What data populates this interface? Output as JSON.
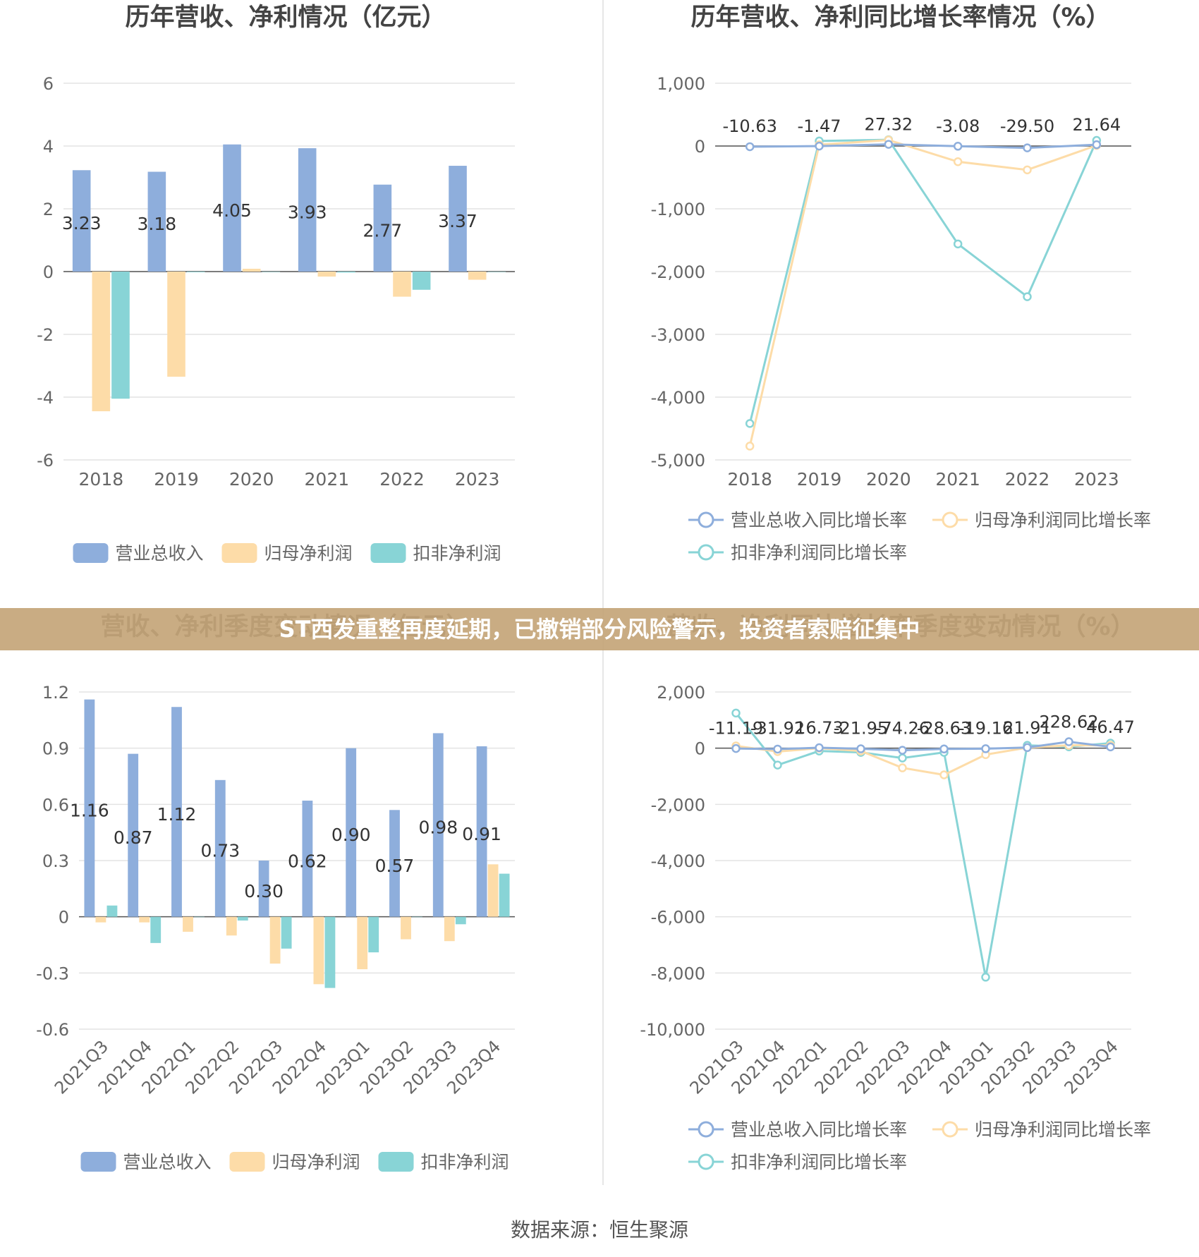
{
  "banner": "ST西发重整再度延期，已撤销部分风险警示，投资者索赔征集中",
  "source": "数据来源：恒生聚源",
  "colors": {
    "revenue": "#8eaedc",
    "net_profit": "#fddca8",
    "deducted": "#88d4d6",
    "divider": "#e6e6e6"
  },
  "chart_data": [
    {
      "id": "annual-bars",
      "type": "bar",
      "title": "历年营收、净利情况（亿元）",
      "categories": [
        "2018",
        "2019",
        "2020",
        "2021",
        "2022",
        "2023"
      ],
      "ylim": [
        -6,
        6
      ],
      "yticks": [
        6,
        4,
        2,
        0,
        -2,
        -4,
        -6
      ],
      "ytick_labels": [
        "6",
        "4",
        "2",
        "0",
        "-2",
        "-4",
        "-6"
      ],
      "series": [
        {
          "name": "营业总收入",
          "color": "#8eaedc",
          "values": [
            3.23,
            3.18,
            4.05,
            3.93,
            2.77,
            3.37
          ],
          "labels": [
            "3.23",
            "3.18",
            "4.05",
            "3.93",
            "2.77",
            "3.37"
          ]
        },
        {
          "name": "归母净利润",
          "color": "#fddca8",
          "values": [
            -4.45,
            -3.35,
            0.09,
            -0.16,
            -0.8,
            -0.26
          ]
        },
        {
          "name": "扣非净利润",
          "color": "#88d4d6",
          "values": [
            -4.05,
            -0.02,
            0.0,
            -0.03,
            -0.58,
            0.0
          ]
        }
      ],
      "grid": true,
      "legend": "bottom"
    },
    {
      "id": "annual-growth",
      "type": "line",
      "title": "历年营收、净利同比增长率情况（%）",
      "categories": [
        "2018",
        "2019",
        "2020",
        "2021",
        "2022",
        "2023"
      ],
      "ylim": [
        -5000,
        1000
      ],
      "yticks": [
        1000,
        0,
        -1000,
        -2000,
        -3000,
        -4000,
        -5000
      ],
      "ytick_labels": [
        "1,000",
        "0",
        "-1,000",
        "-2,000",
        "-3,000",
        "-4,000",
        "-5,000"
      ],
      "series": [
        {
          "name": "营业总收入同比增长率",
          "color": "#8eaedc",
          "values": [
            -10.63,
            -1.47,
            27.32,
            -3.08,
            -29.5,
            21.64
          ],
          "labels": [
            "-10.63",
            "-1.47",
            "27.32",
            "-3.08",
            "-29.50",
            "21.64"
          ]
        },
        {
          "name": "归母净利润同比增长率",
          "color": "#fddca8",
          "values": [
            -4780,
            20,
            95,
            -250,
            -380,
            10
          ]
        },
        {
          "name": "扣非净利润同比增长率",
          "color": "#88d4d6",
          "values": [
            -4420,
            80,
            100,
            -1560,
            -2400,
            90
          ]
        }
      ],
      "grid": true,
      "legend": "bottom"
    },
    {
      "id": "quarterly-bars",
      "type": "bar",
      "title": "营收、净利季度变动情况（亿元）",
      "categories": [
        "2021Q3",
        "2021Q4",
        "2022Q1",
        "2022Q2",
        "2022Q3",
        "2022Q4",
        "2023Q1",
        "2023Q2",
        "2023Q3",
        "2023Q4"
      ],
      "ylim": [
        -0.6,
        1.2
      ],
      "yticks": [
        1.2,
        0.9,
        0.6,
        0.3,
        0,
        -0.3,
        -0.6
      ],
      "ytick_labels": [
        "1.2",
        "0.9",
        "0.6",
        "0.3",
        "0",
        "-0.3",
        "-0.6"
      ],
      "series": [
        {
          "name": "营业总收入",
          "color": "#8eaedc",
          "values": [
            1.16,
            0.87,
            1.12,
            0.73,
            0.3,
            0.62,
            0.9,
            0.57,
            0.98,
            0.91
          ],
          "labels": [
            "1.16",
            "0.87",
            "1.12",
            "0.73",
            "0.30",
            "0.62",
            "0.90",
            "0.57",
            "0.98",
            "0.91"
          ]
        },
        {
          "name": "归母净利润",
          "color": "#fddca8",
          "values": [
            -0.03,
            -0.03,
            -0.08,
            -0.1,
            -0.25,
            -0.36,
            -0.28,
            -0.12,
            -0.13,
            0.28
          ]
        },
        {
          "name": "扣非净利润",
          "color": "#88d4d6",
          "values": [
            0.06,
            -0.14,
            0.0,
            -0.02,
            -0.17,
            -0.38,
            -0.19,
            0.0,
            -0.04,
            0.23
          ]
        }
      ],
      "grid": true,
      "legend": "bottom"
    },
    {
      "id": "quarterly-growth",
      "type": "line",
      "title": "营收、净利同比增长率季度变动情况（%）",
      "categories": [
        "2021Q3",
        "2021Q4",
        "2022Q1",
        "2022Q2",
        "2022Q3",
        "2022Q4",
        "2023Q1",
        "2023Q2",
        "2023Q3",
        "2023Q4"
      ],
      "ylim": [
        -10000,
        2000
      ],
      "yticks": [
        2000,
        0,
        -2000,
        -4000,
        -6000,
        -8000,
        -10000
      ],
      "ytick_labels": [
        "2,000",
        "0",
        "-2,000",
        "-4,000",
        "-6,000",
        "-8,000",
        "-10,000"
      ],
      "series": [
        {
          "name": "营业总收入同比增长率",
          "color": "#8eaedc",
          "values": [
            -11.19,
            -31.92,
            16.73,
            -21.95,
            -74.26,
            -28.63,
            -19.16,
            21.91,
            228.62,
            46.47
          ],
          "labels": [
            "-11.19",
            "-31.92",
            "16.73",
            "-21.95",
            "-74.26",
            "-28.63",
            "-19.16",
            "21.91",
            "228.62",
            "46.47"
          ]
        },
        {
          "name": "归母净利润同比增长率",
          "color": "#fddca8",
          "values": [
            80,
            -120,
            0,
            -100,
            -700,
            -950,
            -230,
            20,
            100,
            100
          ]
        },
        {
          "name": "扣非净利润同比增长率",
          "color": "#88d4d6",
          "values": [
            1250,
            -600,
            -100,
            -150,
            -350,
            -150,
            -8150,
            100,
            50,
            180
          ]
        }
      ],
      "grid": true,
      "legend": "bottom"
    }
  ]
}
